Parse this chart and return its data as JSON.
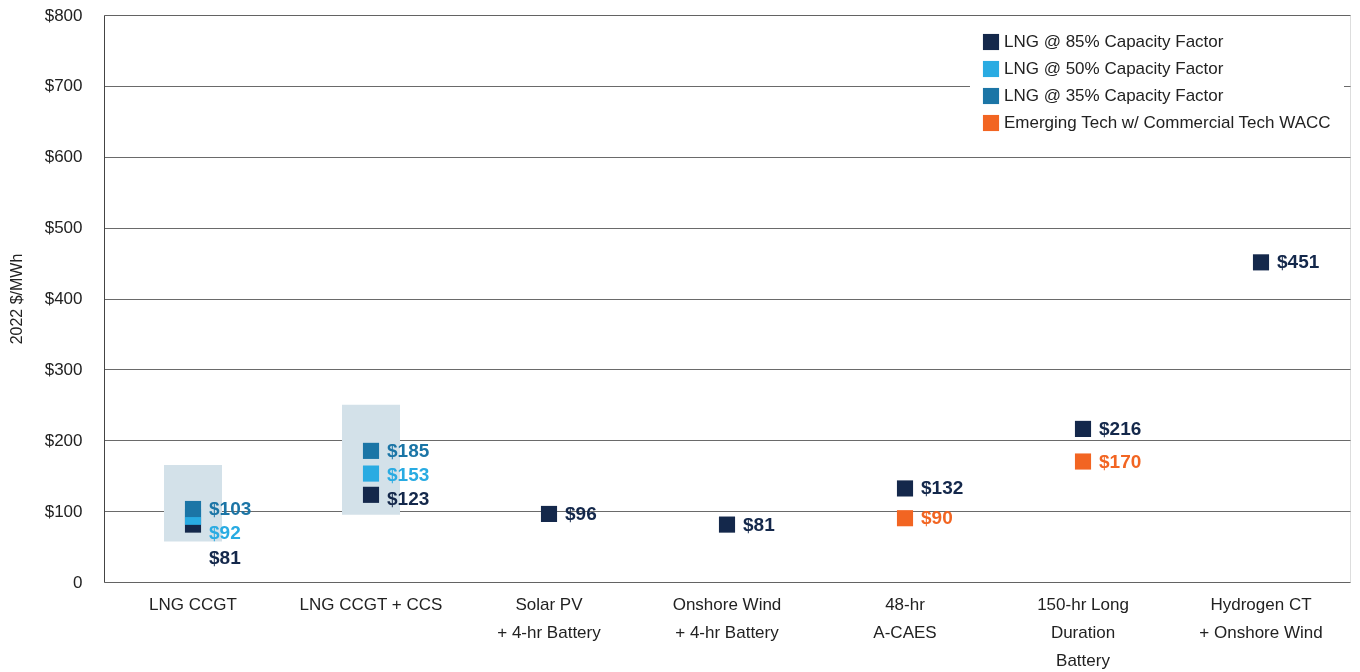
{
  "chart_data": {
    "type": "scatter",
    "ylabel": "2022 $/MWh",
    "categories": [
      "LNG CCGT",
      "LNG CCGT + CCS",
      "Solar PV\n+ 4-hr Battery",
      "Onshore Wind\n+ 4-hr Battery",
      "48-hr\nA-CAES",
      "150-hr Long\nDuration\nBattery",
      "Hydrogen CT\n+ Onshore Wind"
    ],
    "series": [
      {
        "type": "bar",
        "color": "#d3e1e9",
        "base": [
          57,
          95,
          null,
          null,
          null,
          null,
          null
        ],
        "values": [
          108,
          155,
          null,
          null,
          null,
          null,
          null
        ]
      },
      {
        "name": "LNG @ 85% Capacity Factor",
        "color": "#14284b",
        "values": [
          81,
          123,
          96,
          81,
          132,
          216,
          451
        ],
        "value_labels": [
          "$81",
          "$123",
          "$96",
          "$81",
          "$132",
          "$216",
          "$451"
        ]
      },
      {
        "name": "LNG @ 50% Capacity Factor",
        "color": "#29abe2",
        "values": [
          92,
          153,
          null,
          null,
          null,
          null,
          null
        ],
        "value_labels": [
          "$92",
          "$153",
          null,
          null,
          null,
          null,
          null
        ]
      },
      {
        "name": "LNG @ 35% Capacity Factor",
        "color": "#1b75a6",
        "values": [
          103,
          185,
          null,
          null,
          null,
          null,
          null
        ],
        "value_labels": [
          "$103",
          "$185",
          null,
          null,
          null,
          null,
          null
        ]
      },
      {
        "name": "Emerging Tech w/ Commercial Tech WACC",
        "color": "#f26522",
        "values": [
          null,
          null,
          null,
          null,
          90,
          170,
          null
        ],
        "value_labels": [
          null,
          null,
          null,
          null,
          "$90",
          "$170",
          null
        ]
      }
    ],
    "ylim": [
      0,
      800
    ],
    "yticks": [
      0,
      {
        "value": 100,
        "label": "$100"
      },
      {
        "value": 200,
        "label": "$200"
      },
      {
        "value": 300,
        "label": "$300"
      },
      {
        "value": 400,
        "label": "$400"
      },
      {
        "value": 500,
        "label": "$500"
      },
      {
        "value": 600,
        "label": "$600"
      },
      {
        "value": 700,
        "label": "$700"
      },
      {
        "value": 800,
        "label": "$800"
      }
    ],
    "grid": "y",
    "legend": "top right",
    "marker": "square"
  }
}
